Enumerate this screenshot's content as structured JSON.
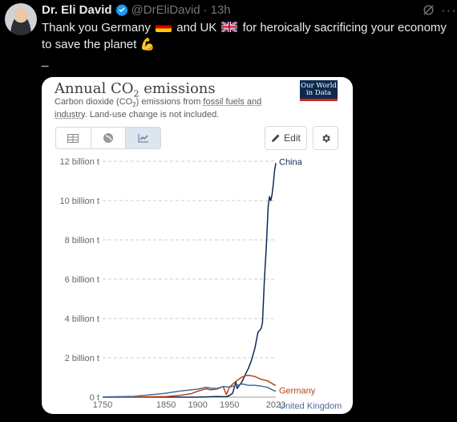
{
  "tweet": {
    "author_name": "Dr. Eli David",
    "handle": "@DrEliDavid",
    "separator": "·",
    "timestamp": "13h",
    "text_part1": "Thank you Germany",
    "text_part2": "and UK",
    "text_part3": "for heroically sacrificing your economy to save the planet",
    "text_line2": "_",
    "flag_1": "germany-flag",
    "flag_2": "uk-flag",
    "emoji": "💪"
  },
  "card": {
    "title_prefix": "Annual CO",
    "title_sub": "2",
    "title_suffix": " emissions",
    "subtitle_a": "Carbon dioxide (CO",
    "subtitle_sub": "2",
    "subtitle_b": ") emissions from ",
    "subtitle_link": "fossil fuels and industry",
    "subtitle_c": ". Land-use change is not included.",
    "logo_line1": "Our World",
    "logo_line2": "in Data",
    "edit_label": "Edit"
  },
  "colors": {
    "china": "#0e2a55",
    "germany": "#b5451b",
    "uk": "#4c6a9c"
  },
  "chart_data": {
    "type": "line",
    "title": "Annual CO₂ emissions",
    "ylim": [
      0,
      12000000000
    ],
    "xlim": [
      1750,
      2023
    ],
    "y_ticks": [
      {
        "value": 0,
        "label": "0 t"
      },
      {
        "value": 2000000000,
        "label": "2 billion t"
      },
      {
        "value": 4000000000,
        "label": "4 billion t"
      },
      {
        "value": 6000000000,
        "label": "6 billion t"
      },
      {
        "value": 8000000000,
        "label": "8 billion t"
      },
      {
        "value": 10000000000,
        "label": "10 billion t"
      },
      {
        "value": 12000000000,
        "label": "12 billion t"
      }
    ],
    "x_ticks": [
      {
        "value": 1750,
        "label": "1750"
      },
      {
        "value": 1850,
        "label": "1850"
      },
      {
        "value": 1900,
        "label": "1900"
      },
      {
        "value": 1950,
        "label": "1950"
      },
      {
        "value": 2023,
        "label": "2023"
      }
    ],
    "grid": true,
    "series": [
      {
        "name": "China",
        "x": [
          1750,
          1900,
          1930,
          1945,
          1950,
          1955,
          1960,
          1962,
          1970,
          1975,
          1980,
          1985,
          1990,
          1995,
          2000,
          2002,
          2005,
          2008,
          2011,
          2013,
          2015,
          2017,
          2019,
          2021,
          2023
        ],
        "y": [
          0,
          0,
          30000000,
          20000000,
          80000000,
          200000000,
          780000000,
          440000000,
          800000000,
          1150000000,
          1480000000,
          1900000000,
          2480000000,
          3300000000,
          3500000000,
          3800000000,
          6000000000,
          7600000000,
          9700000000,
          10200000000,
          10000000000,
          10300000000,
          10800000000,
          11500000000,
          11900000000
        ]
      },
      {
        "name": "Germany",
        "x": [
          1750,
          1800,
          1850,
          1870,
          1890,
          1900,
          1913,
          1920,
          1930,
          1940,
          1945,
          1950,
          1960,
          1970,
          1979,
          1990,
          2000,
          2010,
          2020,
          2023
        ],
        "y": [
          0,
          3000000,
          30000000,
          80000000,
          180000000,
          300000000,
          430000000,
          370000000,
          410000000,
          540000000,
          130000000,
          510000000,
          810000000,
          1030000000,
          1120000000,
          1050000000,
          900000000,
          830000000,
          640000000,
          600000000
        ]
      },
      {
        "name": "United Kingdom",
        "x": [
          1750,
          1800,
          1850,
          1870,
          1900,
          1913,
          1920,
          1930,
          1940,
          1950,
          1960,
          1970,
          1980,
          1990,
          2000,
          2010,
          2020,
          2023
        ],
        "y": [
          9000000,
          40000000,
          200000000,
          300000000,
          410000000,
          500000000,
          460000000,
          440000000,
          540000000,
          510000000,
          590000000,
          670000000,
          600000000,
          600000000,
          560000000,
          500000000,
          330000000,
          300000000
        ]
      }
    ]
  }
}
